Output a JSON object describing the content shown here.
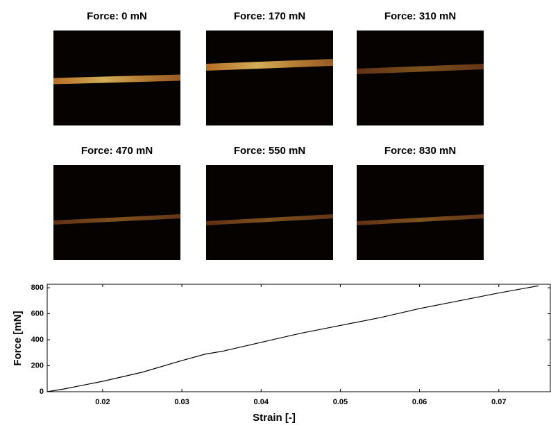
{
  "panels": [
    {
      "title": "Force: 0 mN"
    },
    {
      "title": "Force: 170 mN"
    },
    {
      "title": "Force: 310 mN"
    },
    {
      "title": "Force: 470 mN"
    },
    {
      "title": "Force: 550 mN"
    },
    {
      "title": "Force: 830 mN"
    }
  ],
  "chart_data": {
    "type": "line",
    "x_label": "Strain [-]",
    "y_label": "Force [mN]",
    "x": [
      0.013,
      0.015,
      0.02,
      0.025,
      0.03,
      0.033,
      0.035,
      0.04,
      0.045,
      0.05,
      0.055,
      0.06,
      0.065,
      0.07,
      0.075
    ],
    "values": [
      0,
      20,
      80,
      150,
      240,
      290,
      310,
      380,
      450,
      510,
      570,
      640,
      700,
      760,
      815
    ],
    "color": "#000000",
    "xlim": [
      0.013,
      0.0765
    ],
    "xticks": [
      0.02,
      0.03,
      0.04,
      0.05,
      0.06,
      0.07
    ],
    "ylim": [
      0,
      827
    ],
    "yticks": [
      0,
      200,
      400,
      600,
      800
    ]
  }
}
